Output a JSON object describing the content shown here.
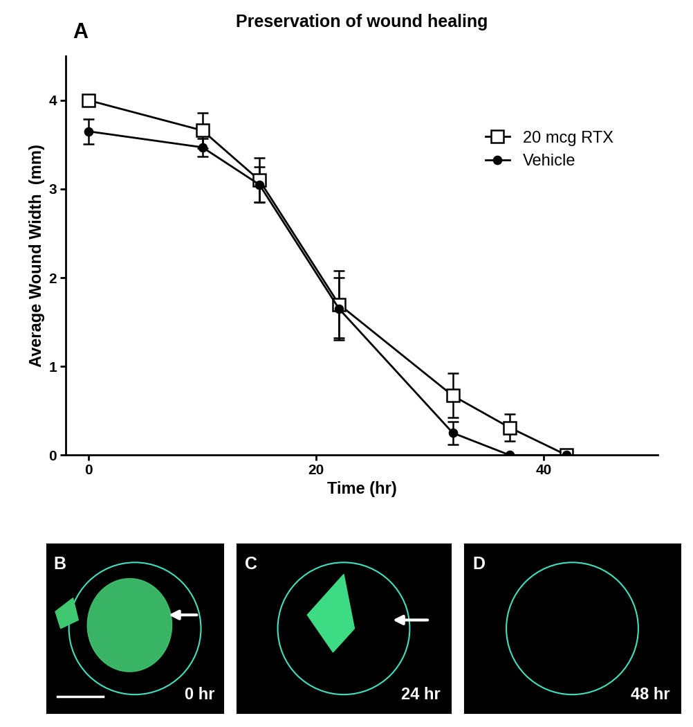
{
  "chart_data": {
    "type": "line",
    "panel_label": "A",
    "title": "Preservation of wound healing",
    "x_label": "Time (hr)",
    "y_label": "Average Wound Width  (mm)",
    "x": [
      0,
      10,
      15,
      22,
      32,
      37,
      42
    ],
    "series": [
      {
        "name": "20 mcg RTX",
        "color": "#000000",
        "marker": "open square",
        "values": [
          4.0,
          3.66,
          3.1,
          1.7,
          0.67,
          0.31,
          0.0
        ],
        "errors": [
          0.05,
          0.2,
          0.25,
          0.38,
          0.25,
          0.15,
          0.02
        ]
      },
      {
        "name": "Vehicle",
        "color": "#000000",
        "marker": "filled circle",
        "values": [
          3.65,
          3.47,
          3.05,
          1.65,
          0.25,
          0.0,
          0.0
        ],
        "errors": [
          0.14,
          0.1,
          0.2,
          0.35,
          0.13,
          0.0,
          0.0
        ]
      }
    ],
    "xlim": [
      -2,
      50
    ],
    "ylim": [
      0,
      4.5
    ],
    "xticks": [
      0,
      20,
      40
    ],
    "yticks": [
      0,
      1,
      2,
      3,
      4
    ],
    "legend": "upper right",
    "grid": false
  },
  "images": [
    {
      "label": "B",
      "caption": "0 hr"
    },
    {
      "label": "C",
      "caption": "24 hr"
    },
    {
      "label": "D",
      "caption": "48 hr"
    }
  ]
}
